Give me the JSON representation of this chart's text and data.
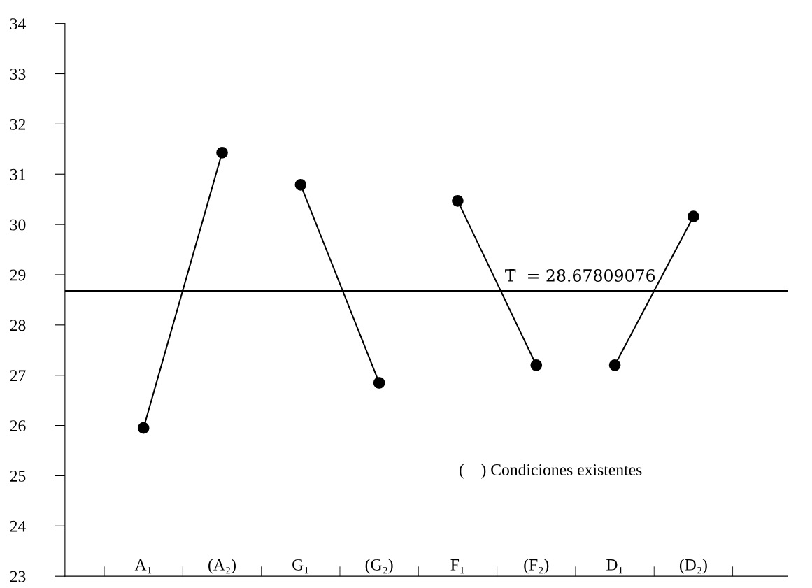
{
  "chart_data": {
    "type": "line",
    "categories": [
      "A₁",
      "(A₂)",
      "G₁",
      "(G₂)",
      "F₁",
      "(F₂)",
      "D₁",
      "(D₂)"
    ],
    "series": [
      {
        "color": "#000000",
        "values": [
          25.95,
          31.43,
          null,
          null,
          null,
          null,
          null,
          null
        ]
      },
      {
        "color": "#000000",
        "values": [
          null,
          null,
          30.79,
          26.85,
          null,
          null,
          null,
          null
        ]
      },
      {
        "color": "#000000",
        "values": [
          null,
          null,
          null,
          null,
          30.47,
          27.2,
          null,
          null
        ]
      },
      {
        "color": "#000000",
        "values": [
          null,
          null,
          null,
          null,
          null,
          null,
          27.2,
          30.16
        ]
      }
    ],
    "ylim": [
      23,
      34
    ],
    "yticks": [
      23,
      24,
      25,
      26,
      27,
      28,
      29,
      30,
      31,
      32,
      33,
      34
    ],
    "marker": "circle",
    "line_style": "solid",
    "grid": false,
    "legend": false,
    "ref_lines": [
      {
        "axis": "y",
        "value": 28.67809076,
        "label": "T̄  = 28.67809076",
        "color": "#000000"
      }
    ],
    "annotations": [
      "(    ) Condiciones existentes"
    ]
  }
}
